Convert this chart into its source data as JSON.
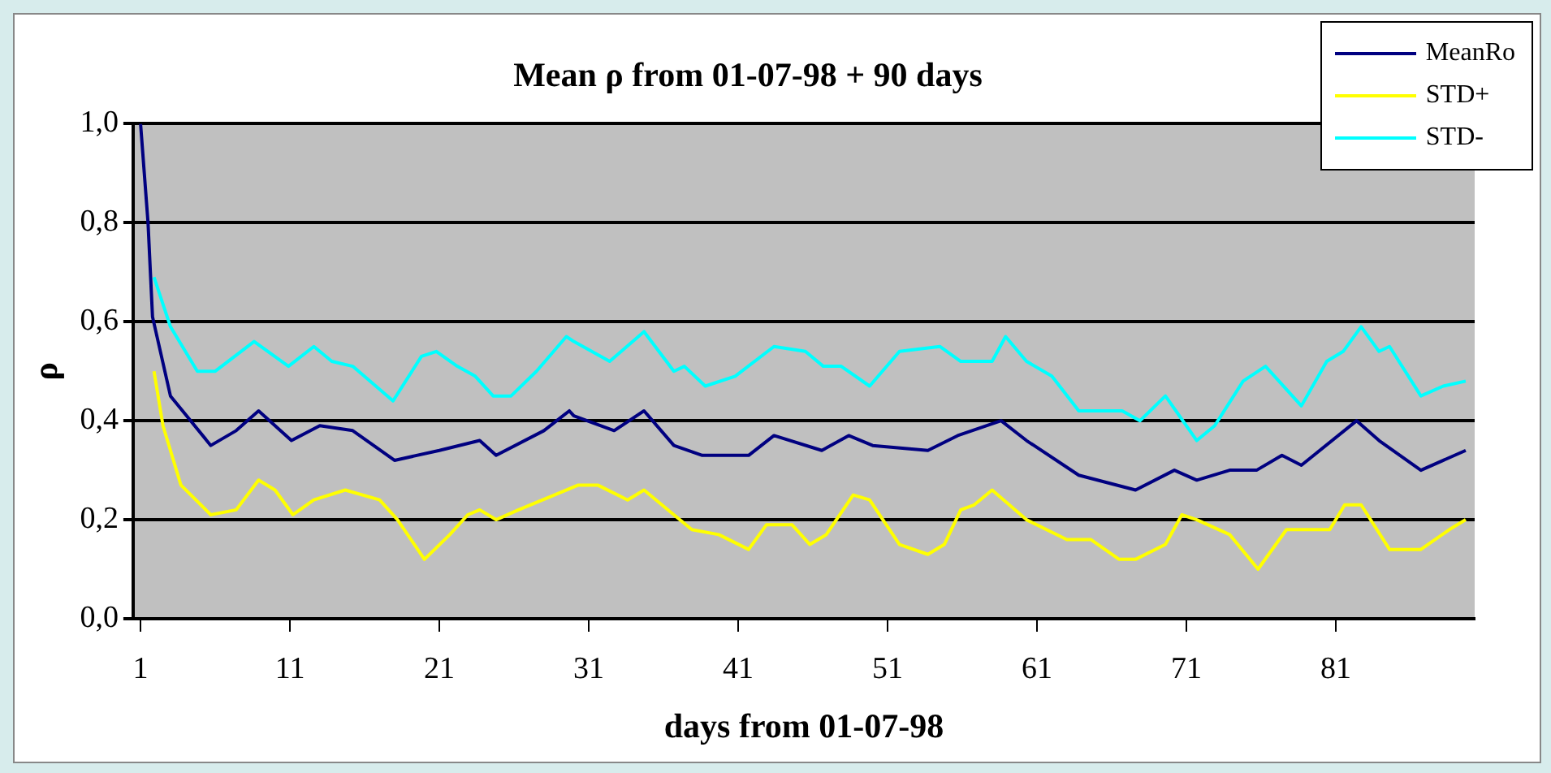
{
  "chart_data": {
    "type": "line",
    "title": "Mean ρ from 01-07-98 + 90 days",
    "xlabel": "days from 01-07-98",
    "ylabel": "ρ",
    "xlim": [
      0.5,
      90.3
    ],
    "xticks": [
      1,
      11,
      21,
      31,
      41,
      51,
      61,
      71,
      81
    ],
    "ylim": [
      0,
      1
    ],
    "yticks": [
      {
        "value": 0,
        "label": "0,0"
      },
      {
        "value": 0.2,
        "label": "0,2"
      },
      {
        "value": 0.4,
        "label": "0,4"
      },
      {
        "value": 0.6,
        "label": "0,6"
      },
      {
        "value": 0.8,
        "label": "0,8"
      },
      {
        "value": 1,
        "label": "1,0"
      }
    ],
    "grid": "y",
    "legend": "top right",
    "marker": "none",
    "line_style": "solid",
    "series": [
      {
        "name": "MeanRo",
        "color": "#000080",
        "x": [
          1,
          1.5,
          1.8,
          3,
          5.7,
          7.4,
          8.9,
          11.1,
          13,
          15.2,
          18,
          21,
          23.7,
          24.8,
          28,
          29.7,
          30,
          32.7,
          34.7,
          36.7,
          38.6,
          41.7,
          43.4,
          46.6,
          48.4,
          50,
          53.7,
          55.7,
          58.6,
          60.3,
          63.8,
          67.6,
          70.2,
          71.7,
          73.9,
          75.7,
          77.4,
          78.7,
          82.4,
          83.9,
          86.7,
          89.7
        ],
        "values": [
          1.0,
          0.8,
          0.61,
          0.45,
          0.35,
          0.38,
          0.42,
          0.36,
          0.39,
          0.38,
          0.32,
          0.34,
          0.36,
          0.33,
          0.38,
          0.42,
          0.41,
          0.38,
          0.42,
          0.35,
          0.33,
          0.33,
          0.37,
          0.34,
          0.37,
          0.35,
          0.34,
          0.37,
          0.4,
          0.36,
          0.29,
          0.26,
          0.3,
          0.28,
          0.3,
          0.3,
          0.33,
          0.31,
          0.4,
          0.36,
          0.3,
          0.34
        ]
      },
      {
        "name": "STD+",
        "color": "#ffff00",
        "x": [
          1.9,
          2.5,
          3.7,
          5.7,
          7.4,
          8.9,
          10,
          11.2,
          12.6,
          14.7,
          17,
          18.2,
          20,
          21.7,
          22.9,
          23.7,
          24.8,
          26.3,
          28.7,
          30.3,
          31.6,
          33.6,
          34.7,
          36.7,
          37.9,
          39.7,
          41.7,
          42.9,
          44.6,
          45.8,
          46.9,
          48.7,
          49.8,
          51.8,
          53.7,
          54.8,
          55.9,
          56.8,
          58,
          60.3,
          63,
          64.6,
          66.5,
          67.6,
          69.6,
          70.7,
          71.7,
          73.9,
          75.8,
          77.7,
          80.6,
          81.6,
          82.7,
          84.6,
          86.7,
          88.6,
          89.7
        ],
        "values": [
          0.5,
          0.39,
          0.27,
          0.21,
          0.22,
          0.28,
          0.26,
          0.21,
          0.24,
          0.26,
          0.24,
          0.2,
          0.12,
          0.17,
          0.21,
          0.22,
          0.2,
          0.22,
          0.25,
          0.27,
          0.27,
          0.24,
          0.26,
          0.21,
          0.18,
          0.17,
          0.14,
          0.19,
          0.19,
          0.15,
          0.17,
          0.25,
          0.24,
          0.15,
          0.13,
          0.15,
          0.22,
          0.23,
          0.26,
          0.2,
          0.16,
          0.16,
          0.12,
          0.12,
          0.15,
          0.21,
          0.2,
          0.17,
          0.1,
          0.18,
          0.18,
          0.23,
          0.23,
          0.14,
          0.14,
          0.18,
          0.2
        ]
      },
      {
        "name": "STD-",
        "color": "#00ffff",
        "x": [
          1.9,
          3,
          4.8,
          6,
          8.6,
          10.9,
          12.6,
          13.8,
          15.2,
          17.9,
          19.8,
          20.8,
          22.2,
          23.4,
          24.6,
          25.8,
          27.5,
          29.5,
          30,
          32.4,
          34.7,
          36.7,
          37.4,
          38.8,
          40.8,
          43.4,
          45.5,
          46.7,
          47.9,
          49.8,
          51.8,
          54.5,
          55.9,
          58,
          58.9,
          60.3,
          62,
          63.8,
          66.7,
          67.9,
          69.6,
          71.7,
          72.9,
          74.8,
          76.3,
          78.7,
          80.4,
          81.5,
          82.7,
          83.9,
          84.6,
          86.7,
          88.2,
          89.7
        ],
        "values": [
          0.69,
          0.59,
          0.5,
          0.5,
          0.56,
          0.51,
          0.55,
          0.52,
          0.51,
          0.44,
          0.53,
          0.54,
          0.51,
          0.49,
          0.45,
          0.45,
          0.5,
          0.57,
          0.56,
          0.52,
          0.58,
          0.5,
          0.51,
          0.47,
          0.49,
          0.55,
          0.54,
          0.51,
          0.51,
          0.47,
          0.54,
          0.55,
          0.52,
          0.52,
          0.57,
          0.52,
          0.49,
          0.42,
          0.42,
          0.4,
          0.45,
          0.36,
          0.39,
          0.48,
          0.51,
          0.43,
          0.52,
          0.54,
          0.59,
          0.54,
          0.55,
          0.45,
          0.47,
          0.48
        ]
      }
    ]
  }
}
